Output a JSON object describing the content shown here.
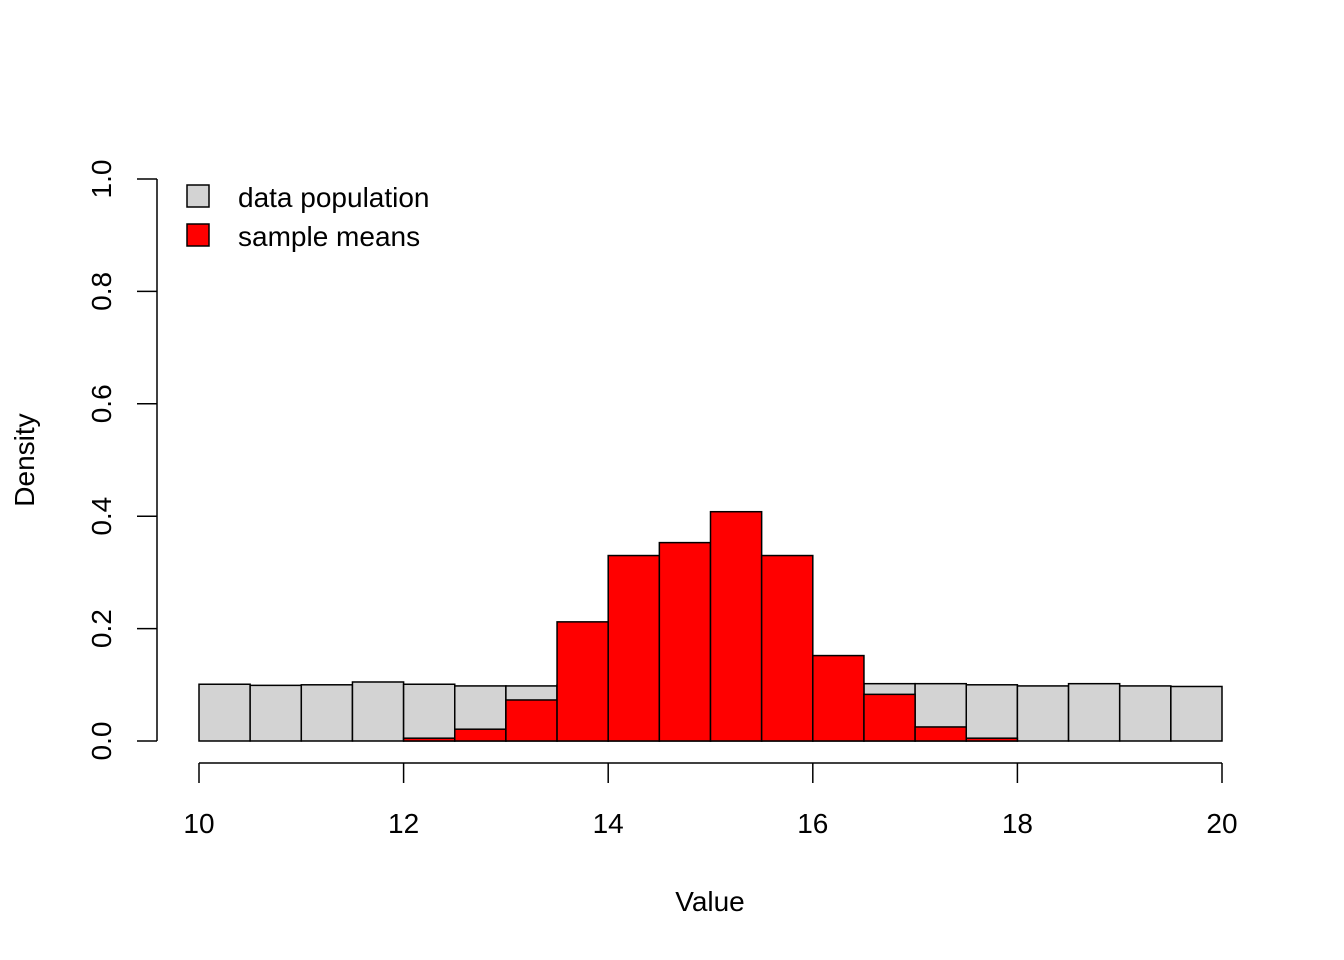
{
  "chart_data": {
    "type": "bar",
    "xlabel": "Value",
    "ylabel": "Density",
    "xlim": [
      10,
      20
    ],
    "ylim": [
      0,
      1
    ],
    "x_ticks": [
      10,
      12,
      14,
      16,
      18,
      20
    ],
    "y_ticks": [
      0.0,
      0.2,
      0.4,
      0.6,
      0.8,
      1.0
    ],
    "x_tick_labels": [
      "10",
      "12",
      "14",
      "16",
      "18",
      "20"
    ],
    "y_tick_labels": [
      "0.0",
      "0.2",
      "0.4",
      "0.6",
      "0.8",
      "1.0"
    ],
    "bin_edges": [
      10,
      10.5,
      11,
      11.5,
      12,
      12.5,
      13,
      13.5,
      14,
      14.5,
      15,
      15.5,
      16,
      16.5,
      17,
      17.5,
      18,
      18.5,
      19,
      19.5,
      20
    ],
    "grid": false,
    "legend_position": "top-left",
    "series": [
      {
        "name": "data population",
        "color": "#d3d3d3",
        "values": [
          0.101,
          0.099,
          0.1,
          0.105,
          0.101,
          0.098,
          0.098,
          0.1,
          0.1,
          0.099,
          0.101,
          0.1,
          0.1,
          0.102,
          0.102,
          0.1,
          0.098,
          0.102,
          0.098,
          0.097
        ]
      },
      {
        "name": "sample means",
        "color": "#ff0000",
        "values": [
          0,
          0,
          0,
          0,
          0.005,
          0.021,
          0.073,
          0.212,
          0.33,
          0.353,
          0.408,
          0.33,
          0.152,
          0.083,
          0.025,
          0.005,
          0,
          0,
          0,
          0
        ]
      }
    ]
  }
}
